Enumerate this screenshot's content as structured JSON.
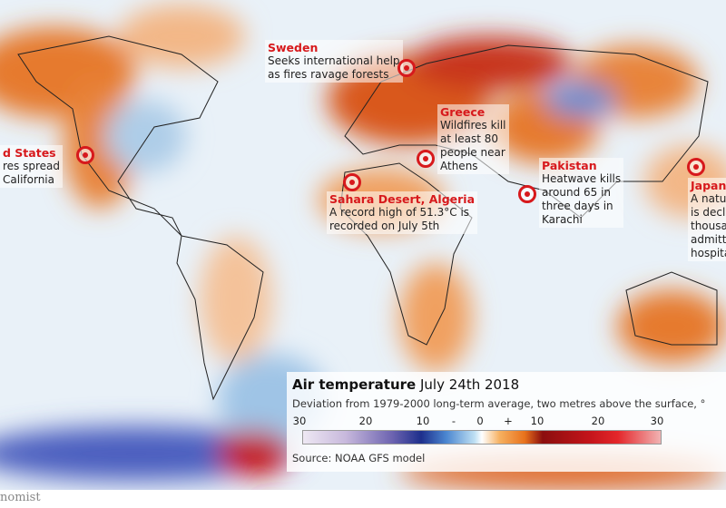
{
  "annotations": [
    {
      "id": "us",
      "title": "d States",
      "desc": [
        "res spread",
        "California"
      ]
    },
    {
      "id": "sweden",
      "title": "Sweden",
      "desc": [
        "Seeks international help",
        "as fires ravage forests"
      ]
    },
    {
      "id": "greece",
      "title": "Greece",
      "desc": [
        "Wildfires kill",
        "at least 80",
        "people near",
        "Athens"
      ]
    },
    {
      "id": "sahara",
      "title": "Sahara Desert, Algeria",
      "desc": [
        "A record high of 51.3°C is",
        "recorded on July 5th"
      ]
    },
    {
      "id": "pakistan",
      "title": "Pakistan",
      "desc": [
        "Heatwave kills",
        "around 65 in",
        "three days in",
        "Karachi"
      ]
    },
    {
      "id": "japan",
      "title": "Japan",
      "desc": [
        "A natur",
        "is decla",
        "thousar",
        "admitte",
        "hospita"
      ]
    }
  ],
  "legend": {
    "title": "Air temperature",
    "date": "July 24th 2018",
    "subtitle": "Deviation from 1979-2000 long-term average, two metres above the surface, °",
    "ticks": [
      "30",
      "20",
      "10",
      "-",
      "0",
      "+",
      "10",
      "20",
      "30"
    ],
    "range": [
      -30,
      30
    ],
    "source": "Source: NOAA GFS model",
    "colors": {
      "cold": "#1e2f8c",
      "neutral": "#ffffff",
      "warm": "#e8721c",
      "hot": "#c3141a"
    }
  },
  "brand": "nomist",
  "accent": "#d7191c"
}
